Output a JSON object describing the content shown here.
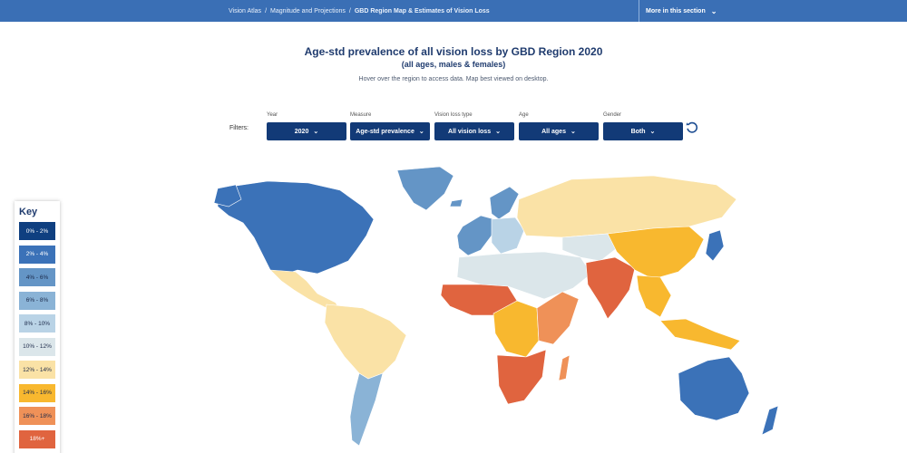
{
  "nav": {
    "breadcrumb": [
      "Vision Atlas",
      "Magnitude and Projections",
      "GBD Region Map & Estimates of Vision Loss"
    ],
    "more_label": "More in this section"
  },
  "header": {
    "title": "Age-std prevalence of all vision loss by GBD Region 2020",
    "subtitle": "(all ages, males & females)",
    "hint": "Hover over the region to access data. Map best viewed on desktop."
  },
  "filters": {
    "label": "Filters:",
    "items": [
      {
        "label": "Year",
        "value": "2020"
      },
      {
        "label": "Measure",
        "value": "Age-std prevalence"
      },
      {
        "label": "Vision loss type",
        "value": "All vision loss"
      },
      {
        "label": "Age",
        "value": "All ages"
      },
      {
        "label": "Gender",
        "value": "Both"
      }
    ]
  },
  "key": {
    "title": "Key",
    "items": [
      {
        "label": "0% - 2%",
        "color": "#0f3f80",
        "text_color": "#ffffff"
      },
      {
        "label": "2% - 4%",
        "color": "#3b72b8",
        "text_color": "#ffffff"
      },
      {
        "label": "4% - 6%",
        "color": "#6495c6",
        "text_color": "#1c2a4a"
      },
      {
        "label": "6% - 8%",
        "color": "#8ab3d6",
        "text_color": "#1c2a4a"
      },
      {
        "label": "8% - 10%",
        "color": "#b9d3e6",
        "text_color": "#1c2a4a"
      },
      {
        "label": "10% - 12%",
        "color": "#dbe6ea",
        "text_color": "#1c2a4a"
      },
      {
        "label": "12% - 14%",
        "color": "#fae2a6",
        "text_color": "#1c2a4a"
      },
      {
        "label": "14% - 16%",
        "color": "#f8b82f",
        "text_color": "#1c2a4a"
      },
      {
        "label": "16% - 18%",
        "color": "#ef9158",
        "text_color": "#1c2a4a"
      },
      {
        "label": "18%+",
        "color": "#e0643f",
        "text_color": "#ffffff"
      }
    ]
  },
  "map_regions": [
    {
      "name": "North America",
      "bin": "2% - 4%"
    },
    {
      "name": "Greenland",
      "bin": "4% - 6%"
    },
    {
      "name": "Central America",
      "bin": "12% - 14%"
    },
    {
      "name": "South America Tropical/Andean",
      "bin": "12% - 14%"
    },
    {
      "name": "Southern Latin America",
      "bin": "6% - 8%"
    },
    {
      "name": "Western Europe",
      "bin": "4% - 6%"
    },
    {
      "name": "Central Europe",
      "bin": "8% - 10%"
    },
    {
      "name": "Russia / Eastern Europe",
      "bin": "12% - 14%"
    },
    {
      "name": "North Africa and Middle East",
      "bin": "10% - 12%"
    },
    {
      "name": "Central Asia",
      "bin": "10% - 12%"
    },
    {
      "name": "West Africa",
      "bin": "18%+"
    },
    {
      "name": "Central Africa",
      "bin": "14% - 16%"
    },
    {
      "name": "East Africa",
      "bin": "16% - 18%"
    },
    {
      "name": "Southern Africa",
      "bin": "18%+"
    },
    {
      "name": "South Asia",
      "bin": "18%+"
    },
    {
      "name": "East Asia",
      "bin": "14% - 16%"
    },
    {
      "name": "Southeast Asia",
      "bin": "14% - 16%"
    },
    {
      "name": "Japan / Korea",
      "bin": "2% - 4%"
    },
    {
      "name": "Australasia",
      "bin": "2% - 4%"
    }
  ]
}
